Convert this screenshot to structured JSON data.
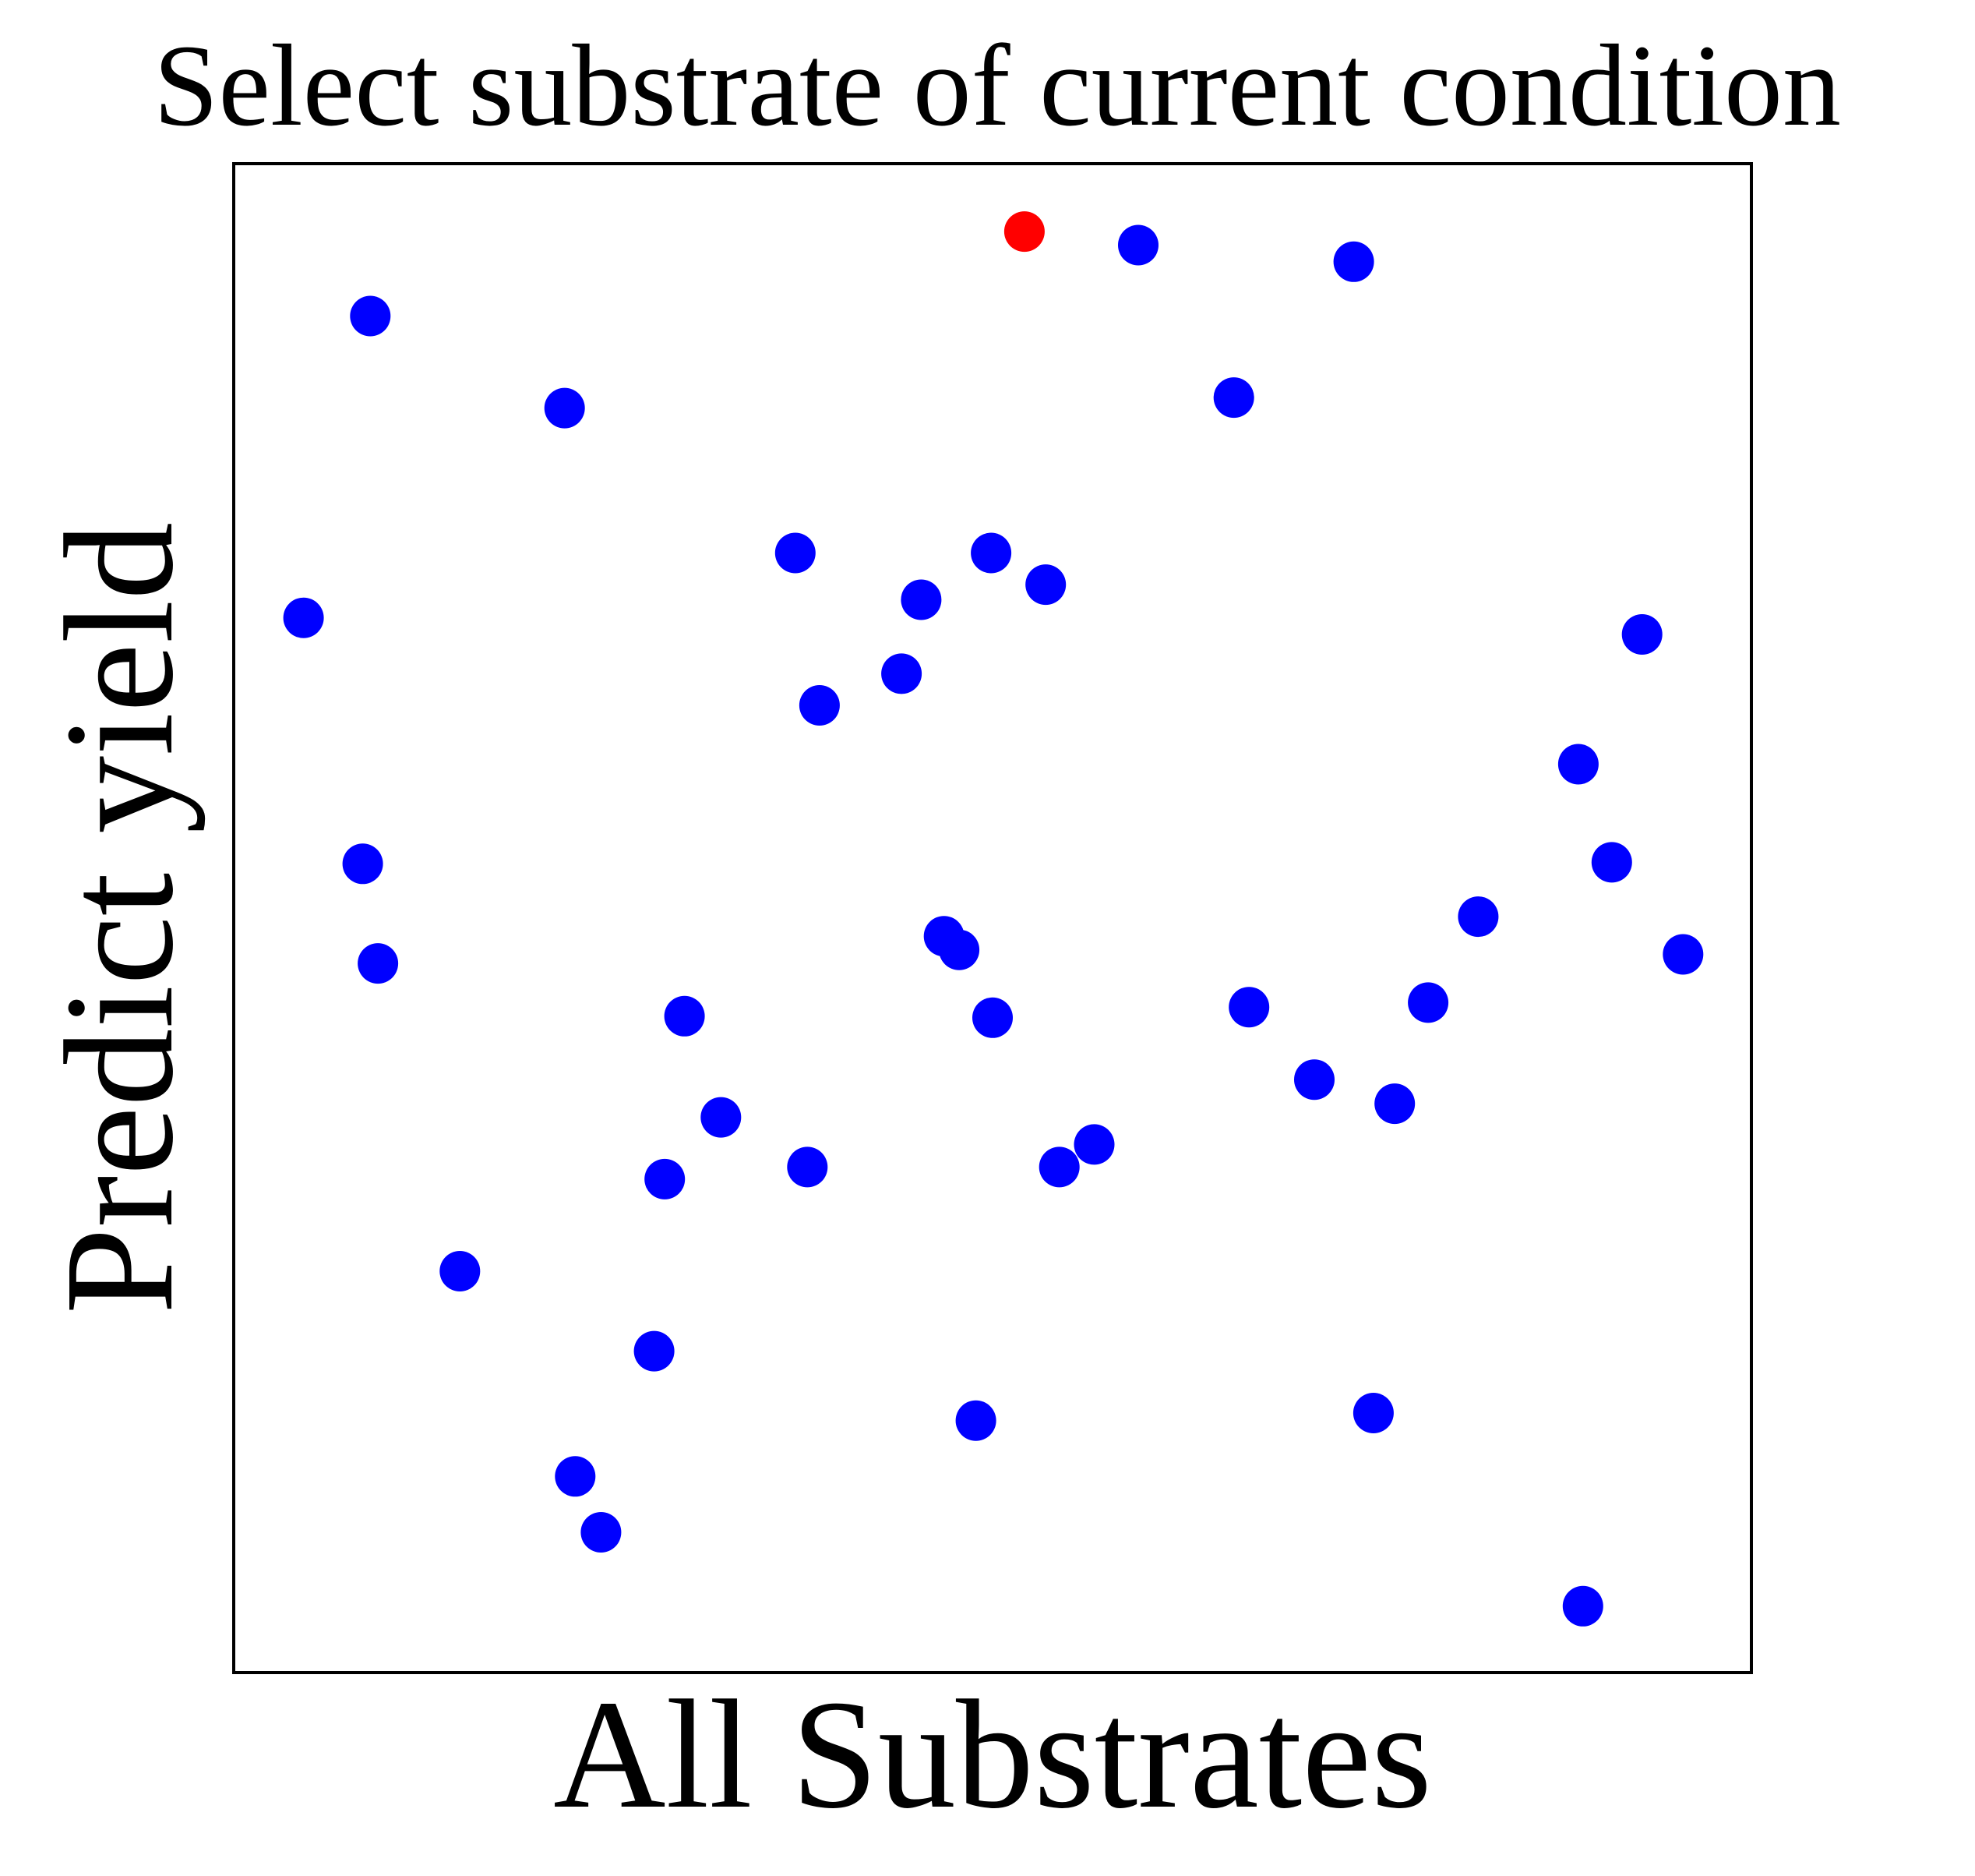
{
  "chart_data": {
    "type": "scatter",
    "title": "Select substrate of current condition",
    "xlabel": "All Substrates",
    "ylabel": "Predict yield",
    "xlim": [
      0,
      1
    ],
    "ylim": [
      0,
      1
    ],
    "grid": false,
    "legend": "none",
    "ticks": "none",
    "colors": {
      "points": "#0000ff",
      "selected": "#ff0000"
    },
    "points": [
      {
        "x": 0.521,
        "y": 0.955,
        "selected": true
      },
      {
        "x": 0.596,
        "y": 0.946,
        "selected": false
      },
      {
        "x": 0.738,
        "y": 0.935,
        "selected": false
      },
      {
        "x": 0.09,
        "y": 0.899,
        "selected": false
      },
      {
        "x": 0.218,
        "y": 0.838,
        "selected": false
      },
      {
        "x": 0.659,
        "y": 0.845,
        "selected": false
      },
      {
        "x": 0.37,
        "y": 0.742,
        "selected": false
      },
      {
        "x": 0.499,
        "y": 0.742,
        "selected": false
      },
      {
        "x": 0.535,
        "y": 0.721,
        "selected": false
      },
      {
        "x": 0.453,
        "y": 0.711,
        "selected": false
      },
      {
        "x": 0.046,
        "y": 0.699,
        "selected": false
      },
      {
        "x": 0.928,
        "y": 0.688,
        "selected": false
      },
      {
        "x": 0.44,
        "y": 0.662,
        "selected": false
      },
      {
        "x": 0.386,
        "y": 0.641,
        "selected": false
      },
      {
        "x": 0.886,
        "y": 0.602,
        "selected": false
      },
      {
        "x": 0.908,
        "y": 0.537,
        "selected": false
      },
      {
        "x": 0.085,
        "y": 0.536,
        "selected": false
      },
      {
        "x": 0.82,
        "y": 0.501,
        "selected": false
      },
      {
        "x": 0.468,
        "y": 0.488,
        "selected": false
      },
      {
        "x": 0.478,
        "y": 0.479,
        "selected": false
      },
      {
        "x": 0.955,
        "y": 0.476,
        "selected": false
      },
      {
        "x": 0.095,
        "y": 0.47,
        "selected": false
      },
      {
        "x": 0.669,
        "y": 0.441,
        "selected": false
      },
      {
        "x": 0.787,
        "y": 0.444,
        "selected": false
      },
      {
        "x": 0.297,
        "y": 0.435,
        "selected": false
      },
      {
        "x": 0.5,
        "y": 0.434,
        "selected": false
      },
      {
        "x": 0.712,
        "y": 0.393,
        "selected": false
      },
      {
        "x": 0.765,
        "y": 0.377,
        "selected": false
      },
      {
        "x": 0.321,
        "y": 0.368,
        "selected": false
      },
      {
        "x": 0.567,
        "y": 0.35,
        "selected": false
      },
      {
        "x": 0.378,
        "y": 0.335,
        "selected": false
      },
      {
        "x": 0.544,
        "y": 0.335,
        "selected": false
      },
      {
        "x": 0.284,
        "y": 0.327,
        "selected": false
      },
      {
        "x": 0.149,
        "y": 0.266,
        "selected": false
      },
      {
        "x": 0.277,
        "y": 0.213,
        "selected": false
      },
      {
        "x": 0.751,
        "y": 0.172,
        "selected": false
      },
      {
        "x": 0.489,
        "y": 0.167,
        "selected": false
      },
      {
        "x": 0.225,
        "y": 0.13,
        "selected": false
      },
      {
        "x": 0.242,
        "y": 0.093,
        "selected": false
      },
      {
        "x": 0.889,
        "y": 0.044,
        "selected": false
      }
    ]
  }
}
